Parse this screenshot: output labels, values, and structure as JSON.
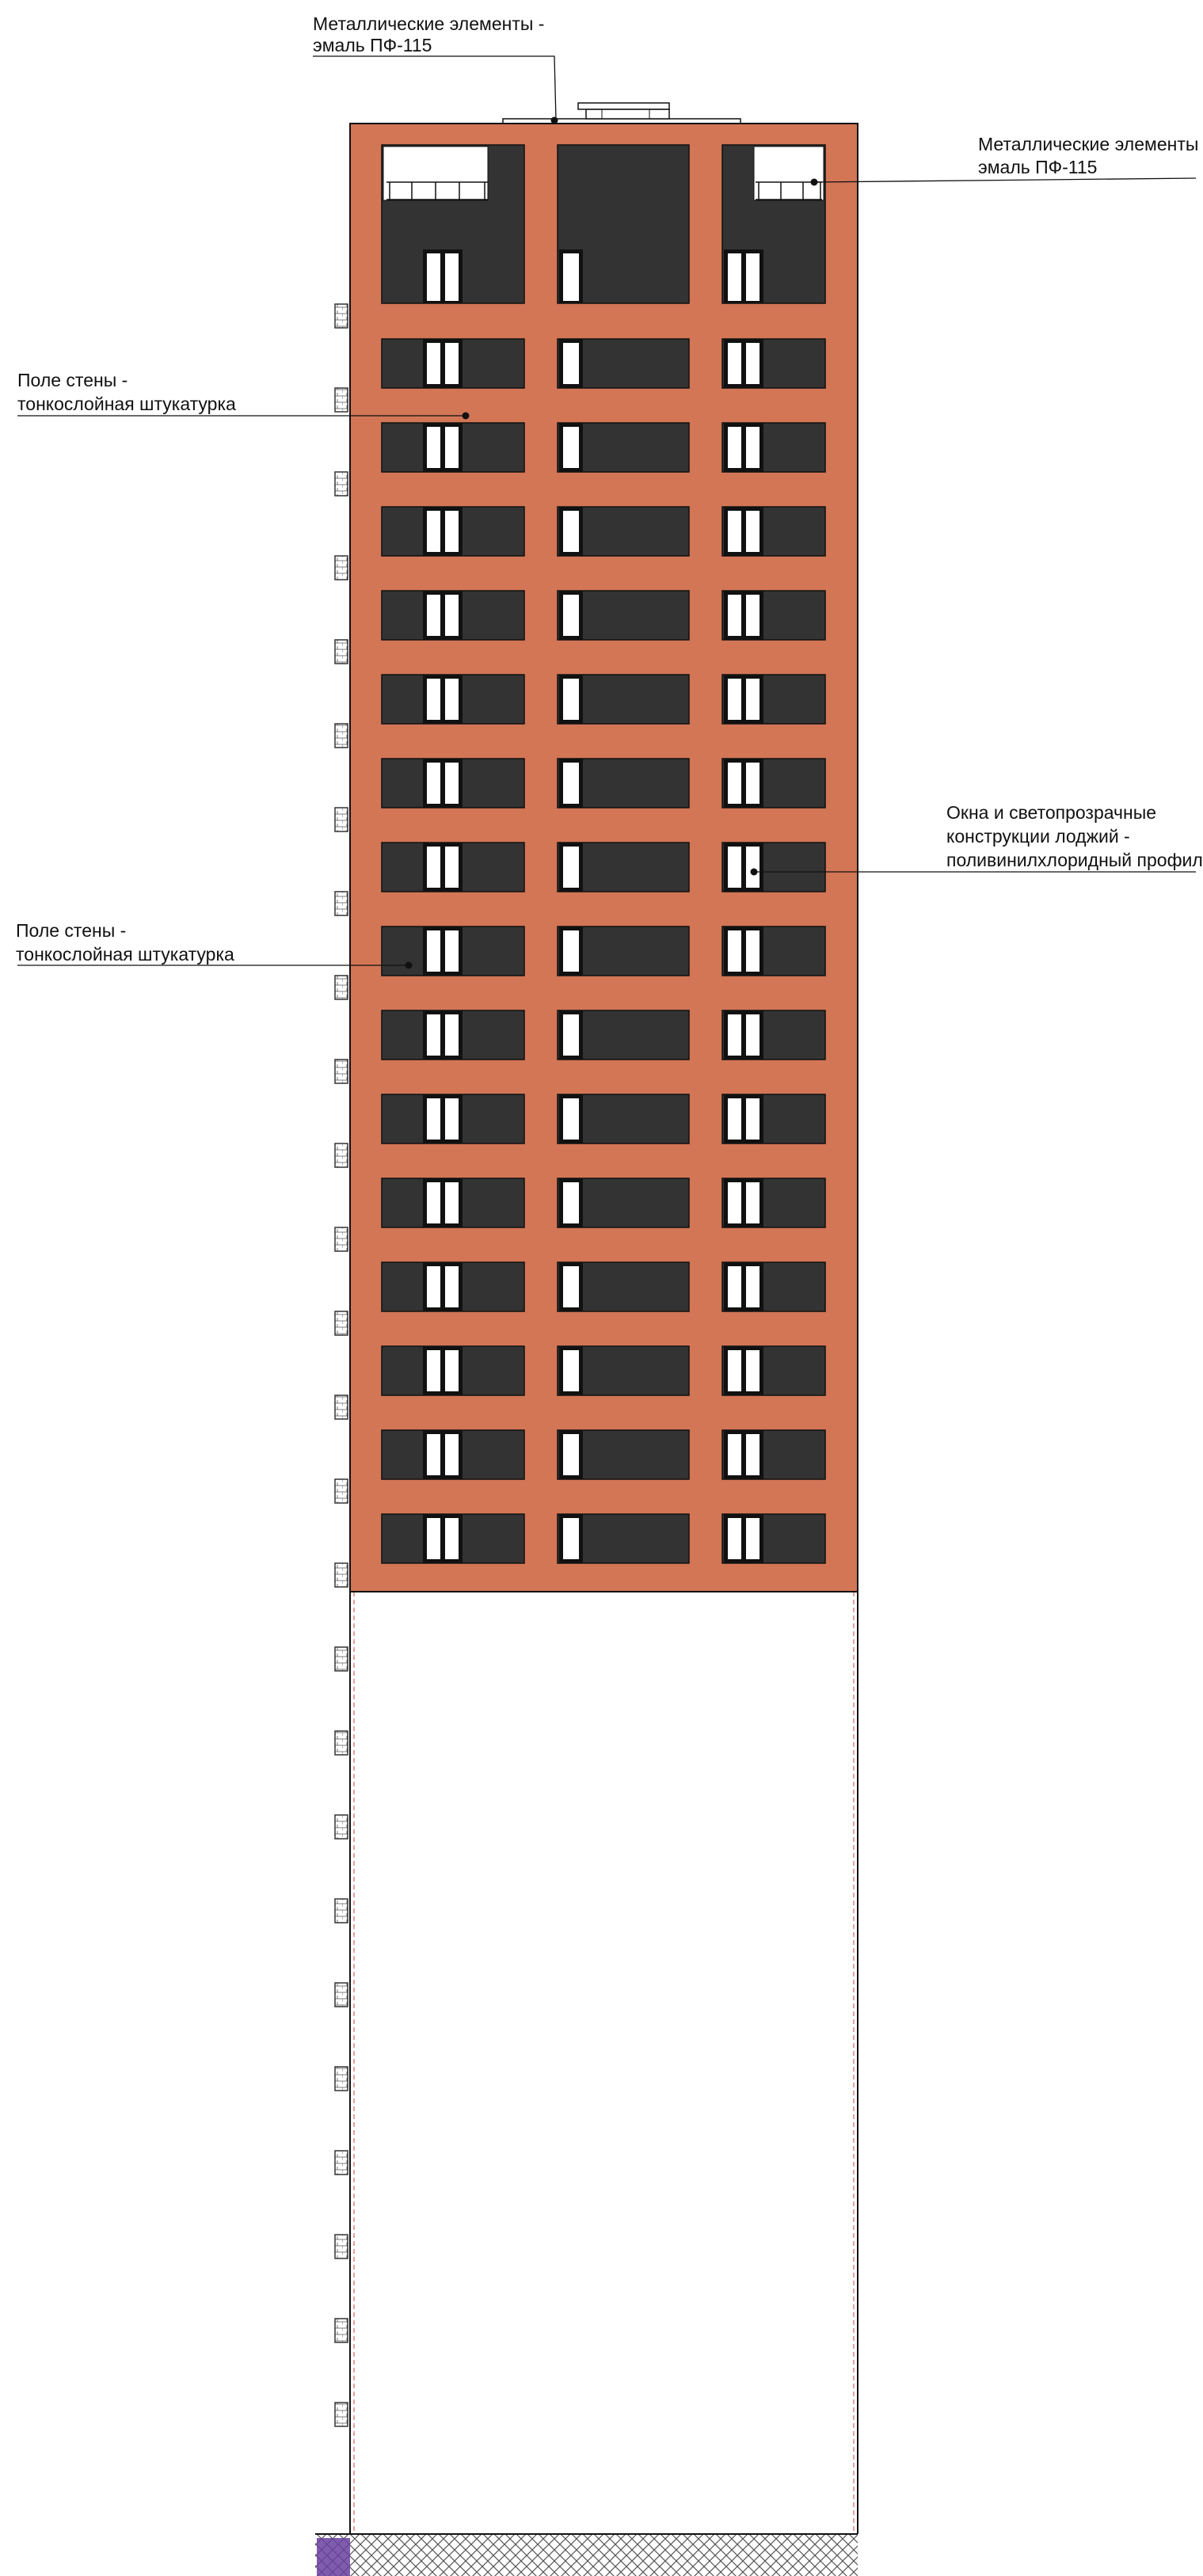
{
  "callouts": {
    "metal_top": {
      "line1": "Металлические элементы -",
      "line2": "эмаль ПФ-115"
    },
    "metal_right": {
      "line1": "Металлические элементы -",
      "line2": "эмаль ПФ-115"
    },
    "wall_upper": {
      "line1": "Поле стены -",
      "line2": "тонкослойная штукатурка"
    },
    "wall_lower": {
      "line1": "Поле стены -",
      "line2": "тонкослойная штукатурка"
    },
    "windows": {
      "line1": "Окна и светопрозрачные",
      "line2": "конструкции лоджий -",
      "line3": "поливинилхлоридный профиль"
    }
  },
  "facade": {
    "typical_floor_count": 15,
    "colors": {
      "wall": "#d27656",
      "dark_panel": "#333333",
      "glass": "#ffffff",
      "frame": "#111111",
      "ground_hatch": "#555555",
      "ground_accent": "#6a3fa0"
    }
  }
}
